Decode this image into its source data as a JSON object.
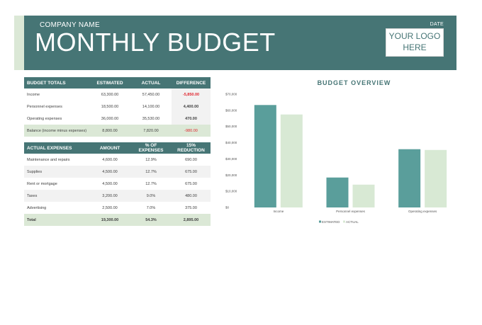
{
  "header": {
    "company": "COMPANY NAME",
    "title": "MONTHLY BUDGET",
    "date_label": "DATE",
    "logo_line1": "YOUR LOGO",
    "logo_line2": "HERE"
  },
  "totals": {
    "headers": [
      "BUDGET TOTALS",
      "ESTIMATED",
      "ACTUAL",
      "DIFFERENCE"
    ],
    "rows": [
      {
        "label": "Income",
        "estimated": "63,300.00",
        "actual": "57,450.00",
        "difference": "-5,850.00"
      },
      {
        "label": "Personnel expenses",
        "estimated": "18,500.00",
        "actual": "14,100.00",
        "difference": "4,400.00"
      },
      {
        "label": "Operating expenses",
        "estimated": "36,000.00",
        "actual": "35,530.00",
        "difference": "470.00"
      },
      {
        "label": "Balance (income minus expenses)",
        "estimated": "8,800.00",
        "actual": "7,820.00",
        "difference": "-980.00"
      }
    ]
  },
  "expenses": {
    "headers": [
      "ACTUAL EXPENSES",
      "AMOUNT",
      "% OF EXPENSES",
      "15% REDUCTION"
    ],
    "rows": [
      {
        "label": "Maintenance and repairs",
        "amount": "4,600.00",
        "percent": "12.9%",
        "reduction": "690.00"
      },
      {
        "label": "Supplies",
        "amount": "4,500.00",
        "percent": "12.7%",
        "reduction": "675.00"
      },
      {
        "label": "Rent or mortgage",
        "amount": "4,500.00",
        "percent": "12.7%",
        "reduction": "675.00"
      },
      {
        "label": "Taxes",
        "amount": "3,200.00",
        "percent": "9.0%",
        "reduction": "480.00"
      },
      {
        "label": "Advertising",
        "amount": "2,500.00",
        "percent": "7.0%",
        "reduction": "375.00"
      }
    ],
    "total": {
      "label": "Total",
      "amount": "19,300.00",
      "percent": "54.3%",
      "reduction": "2,895.00"
    }
  },
  "colors": {
    "estimated": "#5a9e9b",
    "actual": "#d8e9d4",
    "header": "#467575",
    "negative": "#e0262f"
  },
  "chart_data": {
    "type": "bar",
    "title": "BUDGET OVERVIEW",
    "categories": [
      "Income",
      "Personnel expenses",
      "Operating expenses"
    ],
    "series": [
      {
        "name": "ESTIMATED",
        "values": [
          63300,
          18500,
          36000
        ]
      },
      {
        "name": "ACTUAL",
        "values": [
          57450,
          14100,
          35530
        ]
      }
    ],
    "ylim": [
      0,
      70000
    ],
    "yticks": [
      "$0",
      "$10,000",
      "$20,000",
      "$30,000",
      "$40,000",
      "$50,000",
      "$60,000",
      "$70,000"
    ],
    "legend": "bottom",
    "grid": false
  }
}
